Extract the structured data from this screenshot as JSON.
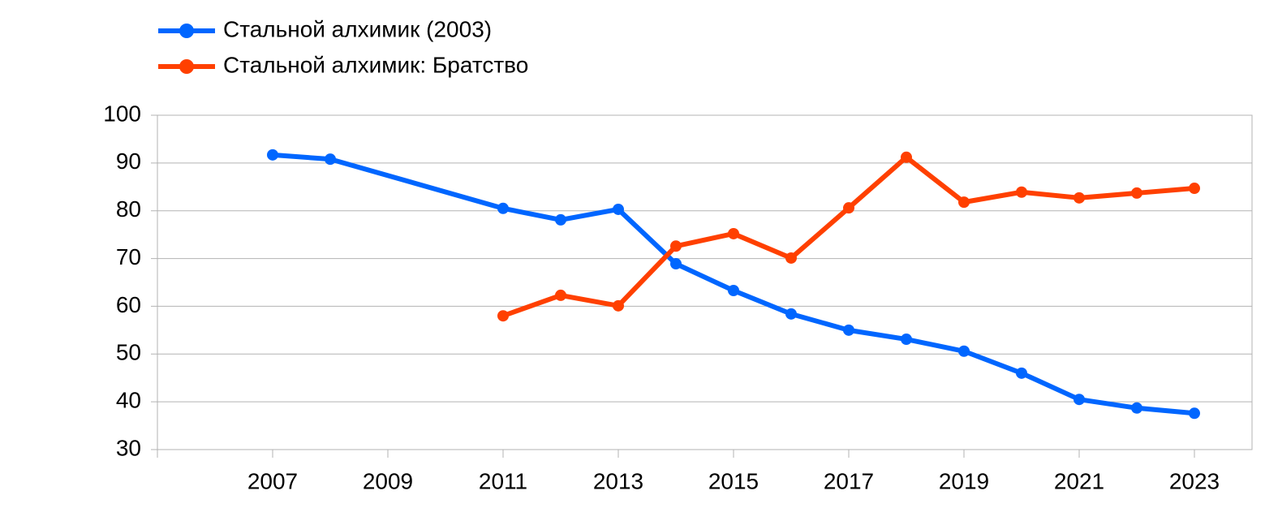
{
  "chart_data": {
    "type": "line",
    "x": [
      2007,
      2008,
      2011,
      2012,
      2013,
      2014,
      2015,
      2016,
      2017,
      2018,
      2019,
      2020,
      2021,
      2022,
      2023
    ],
    "series": [
      {
        "name": "Стальной алхимик (2003)",
        "color": "#0066ff",
        "values": [
          91.7,
          90.8,
          80.5,
          78.1,
          80.3,
          68.9,
          63.3,
          58.4,
          55.0,
          53.1,
          50.6,
          46.0,
          40.5,
          38.7,
          37.6
        ]
      },
      {
        "name": "Стальной алхимик: Братство",
        "color": "#ff4000",
        "values": [
          null,
          null,
          58.0,
          62.3,
          60.1,
          72.6,
          75.2,
          70.1,
          80.6,
          91.2,
          81.8,
          83.9,
          82.7,
          83.7,
          84.7
        ]
      }
    ],
    "xlim": [
      2005,
      2024
    ],
    "xticks": [
      2007,
      2009,
      2011,
      2013,
      2015,
      2017,
      2019,
      2021,
      2023
    ],
    "ylim": [
      30,
      100
    ],
    "yticks": [
      30,
      40,
      50,
      60,
      70,
      80,
      90,
      100
    ],
    "grid": true,
    "legend": "top-left"
  }
}
